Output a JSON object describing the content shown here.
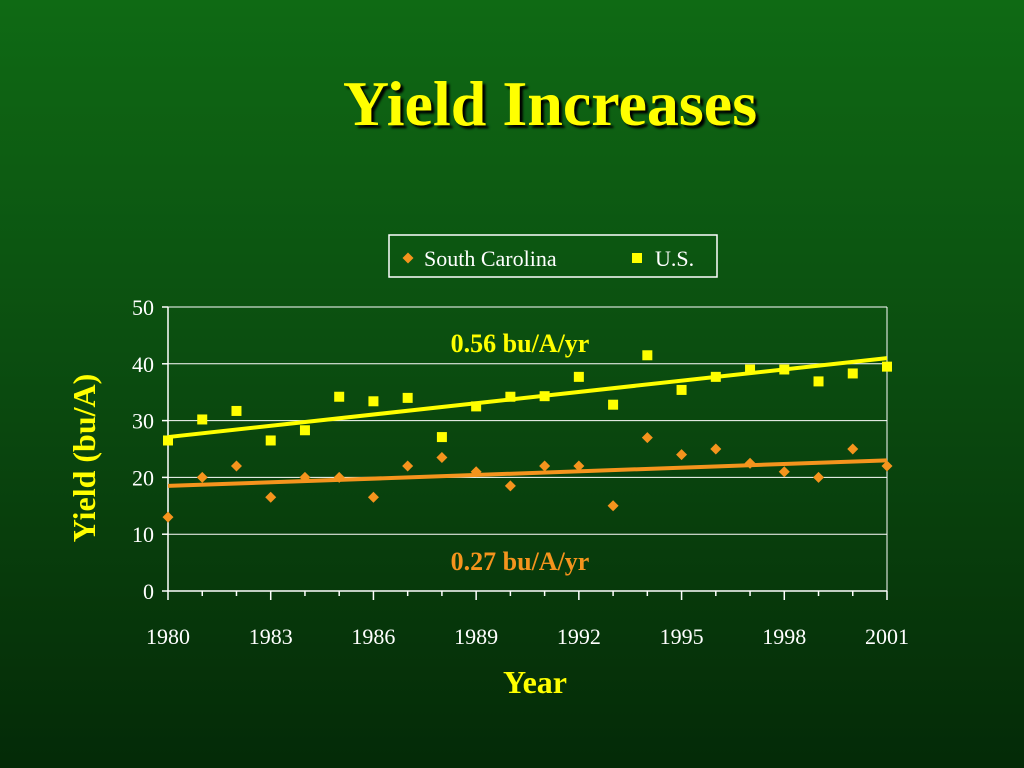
{
  "slide": {
    "title": "Yield Increases"
  },
  "colors": {
    "background_top": "#0f6a14",
    "background_bottom": "#042a07",
    "title": "#ffff00",
    "south_carolina": "#f5941d",
    "us": "#ffff00",
    "axis": "#ffffff",
    "grid": "#ffffff"
  },
  "chart_data": {
    "type": "scatter",
    "title": "",
    "xlabel": "Year",
    "ylabel": "Yield (bu/A)",
    "xlim": [
      1980,
      2001
    ],
    "ylim": [
      0,
      50
    ],
    "x_ticks": [
      1980,
      1983,
      1986,
      1989,
      1992,
      1995,
      1998,
      2001
    ],
    "y_ticks": [
      0,
      10,
      20,
      30,
      40,
      50
    ],
    "grid": "horizontal",
    "legend_position": "top-center",
    "series": [
      {
        "name": "South Carolina",
        "marker": "diamond",
        "color": "#f5941d",
        "x": [
          1980,
          1981,
          1982,
          1983,
          1984,
          1985,
          1986,
          1987,
          1988,
          1989,
          1990,
          1991,
          1992,
          1993,
          1994,
          1995,
          1996,
          1997,
          1998,
          1999,
          2000,
          2001
        ],
        "y": [
          13,
          20,
          22,
          16.5,
          20,
          20,
          16.5,
          22,
          23.5,
          21,
          18.5,
          22,
          22,
          15,
          27,
          24,
          25,
          22.5,
          21,
          20,
          25,
          22
        ],
        "trend": {
          "start": [
            1980,
            18.5
          ],
          "end": [
            2001,
            23
          ],
          "label": "0.27 bu/A/yr"
        }
      },
      {
        "name": "U.S.",
        "marker": "square",
        "color": "#ffff00",
        "x": [
          1980,
          1981,
          1982,
          1983,
          1984,
          1985,
          1986,
          1987,
          1988,
          1989,
          1990,
          1991,
          1992,
          1993,
          1994,
          1995,
          1996,
          1997,
          1998,
          1999,
          2000,
          2001
        ],
        "y": [
          26.5,
          30.2,
          31.7,
          26.5,
          28.3,
          34.2,
          33.4,
          34,
          27.1,
          32.5,
          34.2,
          34.3,
          37.7,
          32.8,
          41.5,
          35.4,
          37.7,
          39,
          39,
          36.9,
          38.3,
          39.5
        ],
        "trend": {
          "start": [
            1980,
            27.1
          ],
          "end": [
            2001,
            41
          ],
          "label": "0.56 bu/A/yr"
        }
      }
    ]
  }
}
